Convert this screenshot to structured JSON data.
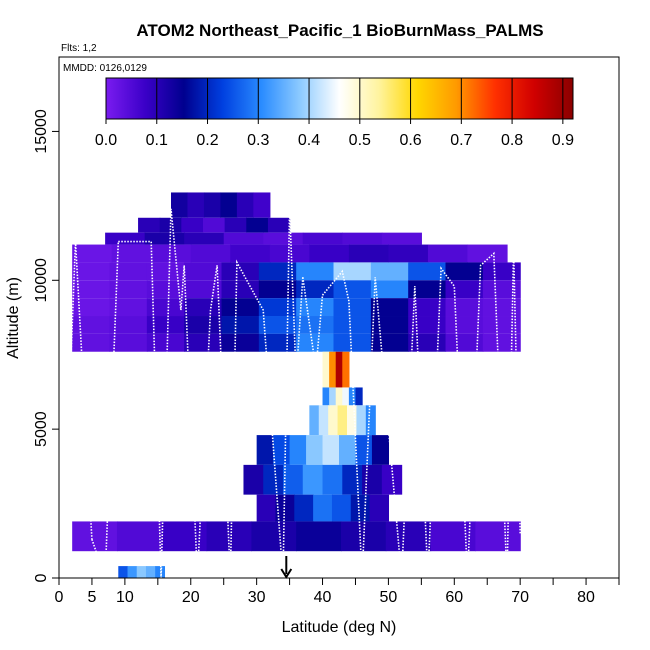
{
  "chart_data": {
    "type": "heatmap",
    "title": "ATOM2 Northeast_Pacific_1 BioBurnMass_PALMS",
    "flights_note": "Flts: 1,2",
    "date_note": "MMDD: 0126,0129",
    "xlabel": "Latitude (deg N)",
    "ylabel": "Altitude (m)",
    "xlim": [
      0,
      85
    ],
    "ylim": [
      0,
      17500
    ],
    "x_ticks": [
      0,
      5,
      10,
      20,
      30,
      40,
      50,
      60,
      70,
      80
    ],
    "y_ticks": [
      0,
      5000,
      10000,
      15000
    ],
    "colorbar": {
      "min": 0.0,
      "max": 0.92,
      "ticks": [
        "0.0",
        "0.1",
        "0.2",
        "0.3",
        "0.4",
        "0.5",
        "0.6",
        "0.7",
        "0.8",
        "0.9"
      ],
      "colors": [
        "#7a1cf0",
        "#3b00c8",
        "#00008f",
        "#0040e0",
        "#2a8cff",
        "#8ecbff",
        "#ffffff",
        "#fff4a0",
        "#ffd700",
        "#ff9a00",
        "#ff3000",
        "#d00000",
        "#8b0000"
      ]
    },
    "grid": false,
    "arrow_marker_latitude": 34.5,
    "layers": [
      {
        "alt_bottom": 12100,
        "alt_top": 12950,
        "lat_start": 17,
        "lat_end": 32,
        "values": [
          0.13,
          0.1,
          0.12,
          0.15,
          0.1,
          0.07
        ]
      },
      {
        "alt_bottom": 11600,
        "alt_top": 12100,
        "lat_start": 12,
        "lat_end": 35,
        "values": [
          0.1,
          0.12,
          0.08,
          0.05,
          0.1,
          0.15,
          0.1
        ]
      },
      {
        "alt_bottom": 11200,
        "alt_top": 11600,
        "lat_start": 7,
        "lat_end": 55,
        "values": [
          0.08,
          0.12,
          0.1,
          0.05,
          0.04,
          0.06,
          0.05,
          0.04
        ]
      },
      {
        "alt_bottom": 10600,
        "alt_top": 11200,
        "lat_start": 2,
        "lat_end": 68,
        "values": [
          0.02,
          0.03,
          0.04,
          0.05,
          0.07,
          0.06,
          0.08,
          0.1,
          0.09,
          0.05,
          0.03
        ]
      },
      {
        "alt_bottom": 10000,
        "alt_top": 10600,
        "lat_start": 2,
        "lat_end": 70,
        "values": [
          0.02,
          0.03,
          0.03,
          0.05,
          0.1,
          0.2,
          0.3,
          0.4,
          0.35,
          0.25,
          0.15,
          0.08
        ]
      },
      {
        "alt_bottom": 9400,
        "alt_top": 10000,
        "lat_start": 2,
        "lat_end": 70,
        "values": [
          0.02,
          0.03,
          0.04,
          0.05,
          0.1,
          0.15,
          0.2,
          0.25,
          0.3,
          0.15,
          0.08,
          0.04
        ]
      },
      {
        "alt_bottom": 8800,
        "alt_top": 9400,
        "lat_start": 2,
        "lat_end": 70,
        "values": [
          0.02,
          0.03,
          0.06,
          0.1,
          0.15,
          0.22,
          0.3,
          0.25,
          0.15,
          0.08,
          0.04,
          0.03
        ]
      },
      {
        "alt_bottom": 8200,
        "alt_top": 8800,
        "lat_start": 2,
        "lat_end": 70,
        "values": [
          0.03,
          0.04,
          0.08,
          0.12,
          0.18,
          0.25,
          0.28,
          0.25,
          0.15,
          0.08,
          0.04,
          0.03
        ]
      },
      {
        "alt_bottom": 7600,
        "alt_top": 8200,
        "lat_start": 2,
        "lat_end": 70,
        "values": [
          0.03,
          0.04,
          0.06,
          0.1,
          0.14,
          0.2,
          0.3,
          0.25,
          0.15,
          0.1,
          0.05,
          0.03
        ]
      },
      {
        "alt_bottom": 6400,
        "alt_top": 7600,
        "lat_start": 40,
        "lat_end": 44,
        "values": [
          0.5,
          0.7,
          0.88,
          0.72
        ]
      },
      {
        "alt_bottom": 5800,
        "alt_top": 6400,
        "lat_start": 40,
        "lat_end": 46,
        "values": [
          0.3,
          0.4,
          0.5,
          0.45,
          0.3,
          0.2
        ]
      },
      {
        "alt_bottom": 4800,
        "alt_top": 5800,
        "lat_start": 38,
        "lat_end": 48,
        "values": [
          0.35,
          0.42,
          0.5,
          0.55,
          0.48,
          0.4,
          0.3
        ]
      },
      {
        "alt_bottom": 3800,
        "alt_top": 4800,
        "lat_start": 30,
        "lat_end": 50,
        "values": [
          0.18,
          0.24,
          0.3,
          0.38,
          0.42,
          0.35,
          0.25,
          0.15
        ]
      },
      {
        "alt_bottom": 2800,
        "alt_top": 3800,
        "lat_start": 28,
        "lat_end": 52,
        "values": [
          0.12,
          0.2,
          0.26,
          0.32,
          0.28,
          0.2,
          0.12,
          0.08
        ]
      },
      {
        "alt_bottom": 1900,
        "alt_top": 2800,
        "lat_start": 30,
        "lat_end": 50,
        "values": [
          0.1,
          0.14,
          0.2,
          0.28,
          0.25,
          0.18,
          0.1
        ]
      },
      {
        "alt_bottom": 900,
        "alt_top": 1900,
        "lat_start": 2,
        "lat_end": 70,
        "values": [
          0.03,
          0.05,
          0.08,
          0.1,
          0.12,
          0.14,
          0.12,
          0.1,
          0.06,
          0.04
        ]
      },
      {
        "alt_bottom": 0,
        "alt_top": 400,
        "lat_start": 9,
        "lat_end": 16,
        "values": [
          0.25,
          0.32,
          0.38,
          0.35,
          0.3
        ]
      }
    ],
    "flight_tracks": [
      [
        [
          0.5,
          0
        ],
        [
          2.5,
          11300
        ]
      ],
      [
        [
          2.5,
          11300
        ],
        [
          5,
          1300
        ]
      ],
      [
        [
          5,
          1300
        ],
        [
          7,
          0
        ],
        [
          9,
          11300
        ]
      ],
      [
        [
          9,
          11300
        ],
        [
          14,
          11300
        ],
        [
          15.5,
          0
        ]
      ],
      [
        [
          15.5,
          0
        ],
        [
          17,
          12400
        ],
        [
          18.5,
          9000
        ],
        [
          19,
          10500
        ],
        [
          21,
          0
        ]
      ],
      [
        [
          21,
          0
        ],
        [
          23,
          9000
        ],
        [
          24,
          10500
        ],
        [
          26,
          0
        ]
      ],
      [
        [
          26,
          0
        ],
        [
          27,
          10600
        ],
        [
          31,
          9000
        ],
        [
          34,
          0
        ]
      ],
      [
        [
          34,
          0
        ],
        [
          35,
          12400
        ],
        [
          36,
          6700
        ],
        [
          37,
          10100
        ]
      ],
      [
        [
          37,
          10100
        ],
        [
          39,
          7000
        ],
        [
          40,
          9500
        ]
      ],
      [
        [
          40,
          9500
        ],
        [
          43,
          10300
        ],
        [
          44,
          9300
        ],
        [
          46,
          0
        ]
      ],
      [
        [
          46,
          0
        ],
        [
          48,
          10100
        ],
        [
          52,
          0
        ]
      ],
      [
        [
          52,
          0
        ],
        [
          54,
          9800
        ],
        [
          56,
          0
        ]
      ],
      [
        [
          56,
          0
        ],
        [
          58,
          10400
        ],
        [
          60,
          9800
        ],
        [
          62,
          0
        ]
      ],
      [
        [
          62,
          0
        ],
        [
          64,
          10500
        ],
        [
          66,
          10900
        ],
        [
          68,
          0
        ]
      ],
      [
        [
          68,
          0
        ],
        [
          69,
          11000
        ],
        [
          70,
          1500
        ]
      ]
    ]
  }
}
